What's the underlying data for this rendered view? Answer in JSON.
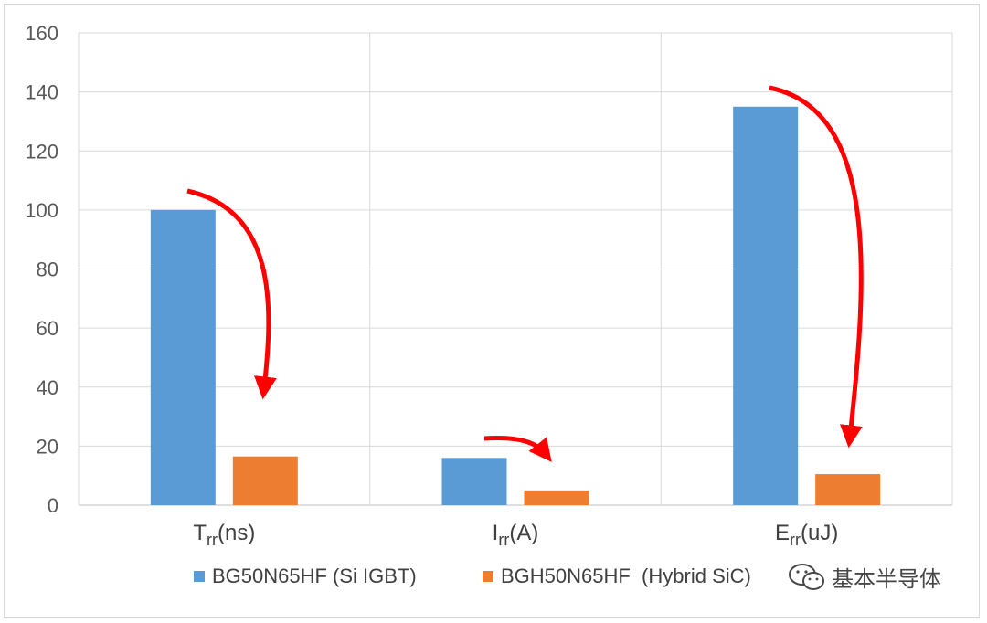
{
  "chart_data": {
    "type": "bar",
    "categories": [
      {
        "main": "T",
        "sub": "rr",
        "unit": "(ns)"
      },
      {
        "main": "I",
        "sub": "rr",
        "unit": "(A)"
      },
      {
        "main": "E",
        "sub": "rr",
        "unit": "(uJ)"
      }
    ],
    "series": [
      {
        "name": "BG50N65HF (Si IGBT)",
        "color": "#5b9bd5",
        "values": [
          100,
          16,
          135
        ]
      },
      {
        "name": "BGH50N65HF  (Hybrid SiC)",
        "color": "#ed7d31",
        "values": [
          16.5,
          5,
          10.5
        ]
      }
    ],
    "ylim": [
      0,
      160
    ],
    "yticks": [
      0,
      20,
      40,
      60,
      80,
      100,
      120,
      140,
      160
    ],
    "grid": true,
    "legend_position": "bottom",
    "annotation_color": "#ff0000"
  },
  "watermark": {
    "icon": "wechat-icon",
    "text": "基本半导体"
  }
}
